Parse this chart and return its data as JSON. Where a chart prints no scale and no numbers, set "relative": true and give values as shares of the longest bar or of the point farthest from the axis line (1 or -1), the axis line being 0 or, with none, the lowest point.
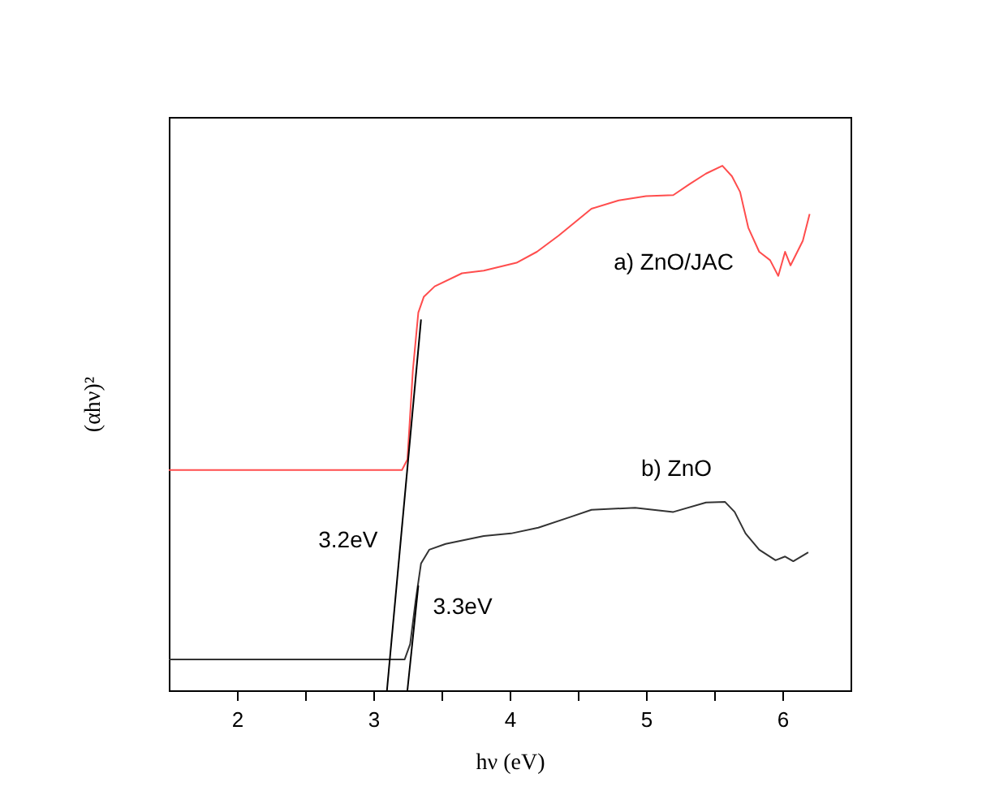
{
  "chart_data": {
    "type": "line",
    "relative": true,
    "xlabel": "hν (eV)",
    "ylabel": "(αhν)²",
    "xlim": [
      1.5,
      6.5
    ],
    "xticks": [
      2,
      {
        "value": 2.5,
        "label": null
      },
      3,
      {
        "value": 3.5,
        "label": null
      },
      4,
      {
        "value": 4.5,
        "label": null
      },
      5,
      {
        "value": 5.5,
        "label": null
      },
      6
    ],
    "grid": false,
    "marker": "none",
    "line_style": "solid",
    "series": [
      {
        "name": "a) ZnO/JAC",
        "color": "#ff4d4d",
        "x": [
          1.5,
          3.21,
          3.25,
          3.29,
          3.33,
          3.37,
          3.45,
          3.65,
          3.81,
          4.05,
          4.2,
          4.36,
          4.6,
          4.8,
          5.0,
          5.2,
          5.32,
          5.44,
          5.56,
          5.63,
          5.69,
          5.75,
          5.83,
          5.91,
          5.97,
          6.02,
          6.06,
          6.15,
          6.2
        ],
        "values": [
          0.42,
          0.42,
          0.44,
          0.61,
          0.72,
          0.75,
          0.77,
          0.795,
          0.8,
          0.815,
          0.836,
          0.867,
          0.918,
          0.934,
          0.942,
          0.944,
          0.965,
          0.985,
          1.0,
          0.98,
          0.95,
          0.882,
          0.836,
          0.82,
          0.79,
          0.836,
          0.81,
          0.857,
          0.908
        ]
      },
      {
        "name": "b) ZnO",
        "color": "#333333",
        "x": [
          1.5,
          3.23,
          3.27,
          3.31,
          3.35,
          3.41,
          3.53,
          3.81,
          4.01,
          4.21,
          4.44,
          4.6,
          4.92,
          5.2,
          5.44,
          5.58,
          5.65,
          5.73,
          5.83,
          5.95,
          6.02,
          6.08,
          6.19
        ],
        "values": [
          0.059,
          0.059,
          0.088,
          0.17,
          0.242,
          0.268,
          0.279,
          0.294,
          0.299,
          0.31,
          0.33,
          0.344,
          0.348,
          0.34,
          0.358,
          0.359,
          0.34,
          0.299,
          0.268,
          0.248,
          0.255,
          0.246,
          0.263
        ]
      },
      {
        "type": "line",
        "color": "#000000",
        "x": [
          3.1,
          3.35
        ],
        "values": [
          0,
          0.707
        ]
      },
      {
        "type": "line",
        "color": "#000000",
        "x": [
          3.25,
          3.33
        ],
        "values": [
          0,
          0.2
        ]
      }
    ],
    "annotations": [
      "3.2eV",
      "3.3eV"
    ]
  }
}
